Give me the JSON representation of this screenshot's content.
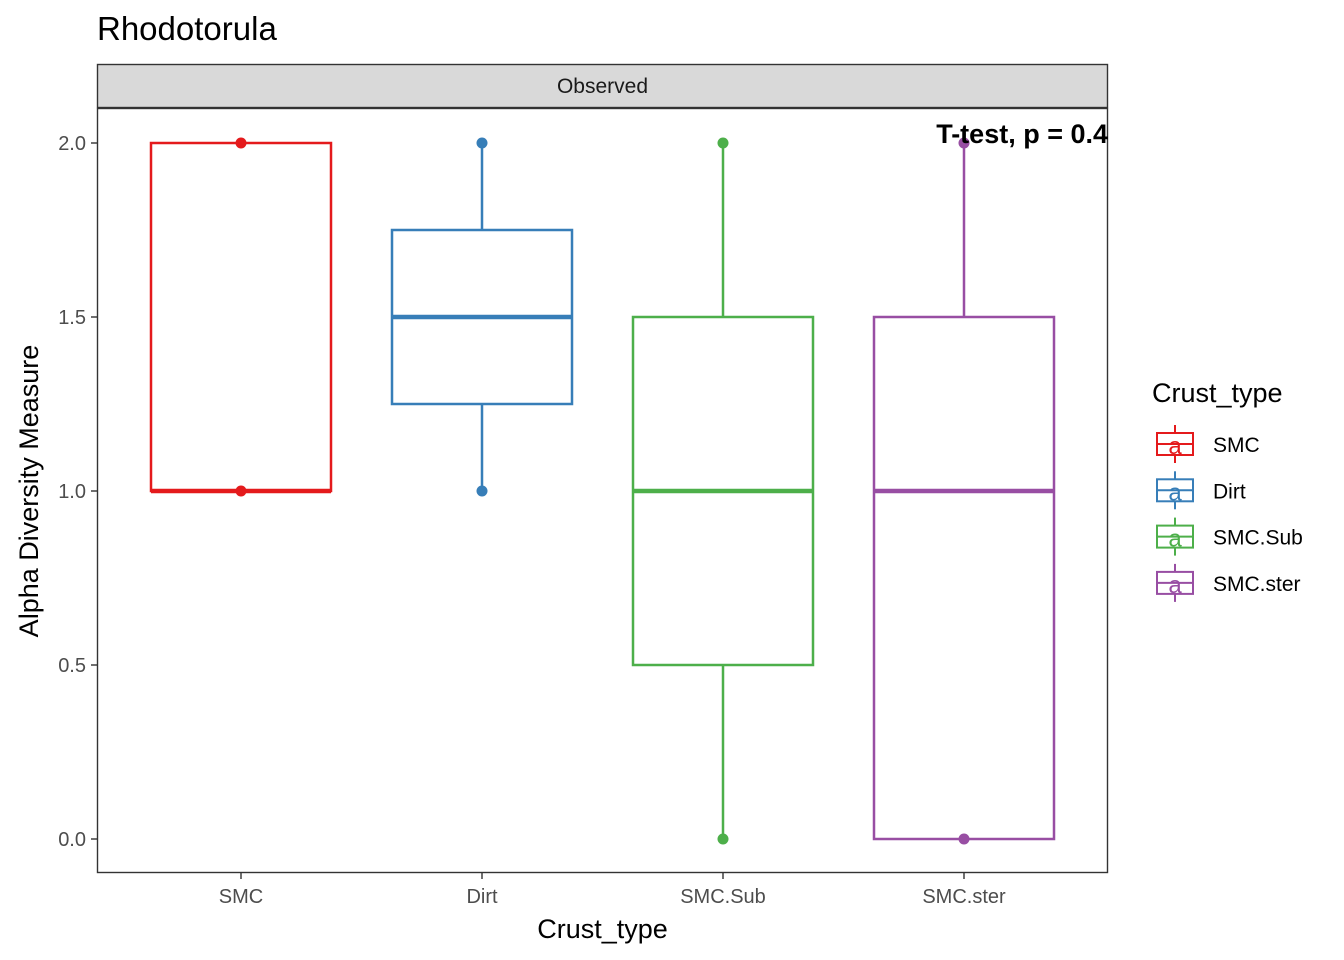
{
  "chart_data": {
    "type": "box",
    "title": "Rhodotorula",
    "facet_label": "Observed",
    "xlabel": "Crust_type",
    "ylabel": "Alpha Diversity Measure",
    "ylim": [
      -0.1,
      2.1
    ],
    "yticks": [
      0.0,
      0.5,
      1.0,
      1.5,
      2.0
    ],
    "ytick_labels": [
      "0.0",
      "0.5",
      "1.0",
      "1.5",
      "2.0"
    ],
    "grid": false,
    "annotation": "T-test, p = 0.4",
    "categories": [
      "SMC",
      "Dirt",
      "SMC.Sub",
      "SMC.ster"
    ],
    "series": [
      {
        "name": "SMC",
        "color": "#E41A1C",
        "min": 1.0,
        "q1": 1.0,
        "median": 1.0,
        "q3": 2.0,
        "max": 2.0,
        "points": [
          2.0,
          1.0
        ]
      },
      {
        "name": "Dirt",
        "color": "#377EB8",
        "min": 1.0,
        "q1": 1.25,
        "median": 1.5,
        "q3": 1.75,
        "max": 2.0,
        "points": [
          2.0,
          1.0
        ]
      },
      {
        "name": "SMC.Sub",
        "color": "#4DAF4A",
        "min": 0.0,
        "q1": 0.5,
        "median": 1.0,
        "q3": 1.5,
        "max": 2.0,
        "points": [
          2.0,
          0.0
        ]
      },
      {
        "name": "SMC.ster",
        "color": "#984EA3",
        "min": 0.0,
        "q1": 0.0,
        "median": 1.0,
        "q3": 1.5,
        "max": 2.0,
        "points": [
          2.0,
          0.0
        ]
      }
    ],
    "legend": {
      "title": "Crust_type",
      "position": "right",
      "key_glyph": "a",
      "entries": [
        "SMC",
        "Dirt",
        "SMC.Sub",
        "SMC.ster"
      ]
    }
  }
}
